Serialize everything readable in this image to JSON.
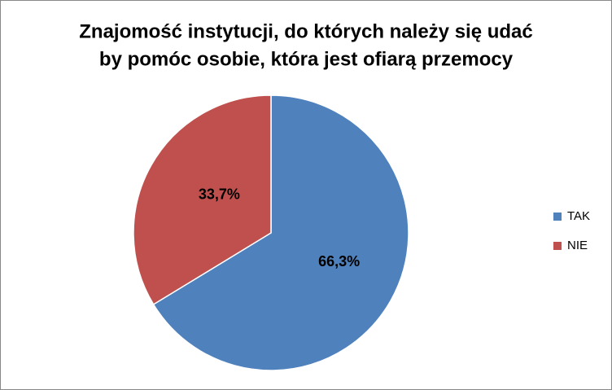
{
  "chart_data": {
    "type": "pie",
    "title": [
      "Znajomość instytucji, do których należy się udać",
      "by pomóc osobie, która jest ofiarą przemocy"
    ],
    "categories": [
      "TAK",
      "NIE"
    ],
    "values": [
      66.3,
      33.7
    ],
    "value_labels": [
      "66,3%",
      "33,7%"
    ],
    "colors": [
      "#4f81bd",
      "#c0504d"
    ],
    "legend": "right"
  }
}
